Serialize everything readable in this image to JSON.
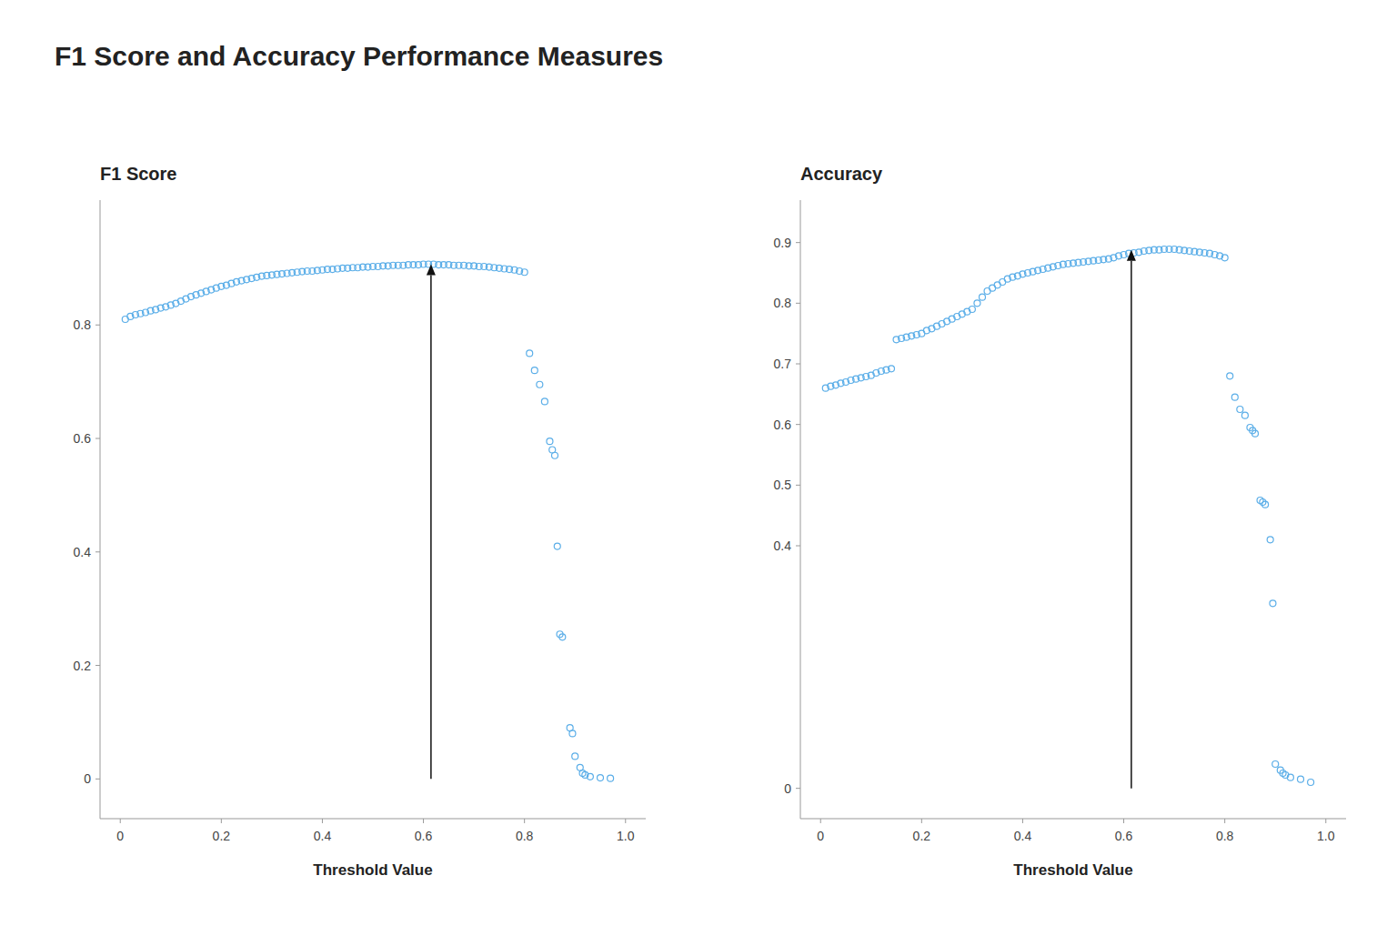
{
  "title": "F1 Score and Accuracy Performance Measures",
  "chart_data": [
    {
      "type": "scatter",
      "title": "F1 Score",
      "x_label": "Threshold Value",
      "color": "#5baee8",
      "marker": "circle",
      "grid": false,
      "xlim": [
        -0.04,
        1.04
      ],
      "xticks": [
        0,
        0.2,
        0.4,
        0.6,
        0.8,
        {
          "value": 1.0,
          "label": "1.0"
        }
      ],
      "ylim": [
        -0.07,
        1.02
      ],
      "yticks": [
        0,
        0.2,
        0.4,
        0.6,
        0.8
      ],
      "annotations": [
        {
          "type": "arrow",
          "x": 0.615,
          "y": 0.907,
          "y_from": 0.0
        }
      ],
      "x": [
        0.01,
        0.02,
        0.03,
        0.04,
        0.05,
        0.06,
        0.07,
        0.08,
        0.09,
        0.1,
        0.11,
        0.12,
        0.13,
        0.14,
        0.15,
        0.16,
        0.17,
        0.18,
        0.19,
        0.2,
        0.21,
        0.22,
        0.23,
        0.24,
        0.25,
        0.26,
        0.27,
        0.28,
        0.29,
        0.3,
        0.31,
        0.32,
        0.33,
        0.34,
        0.35,
        0.36,
        0.37,
        0.38,
        0.39,
        0.4,
        0.41,
        0.42,
        0.43,
        0.44,
        0.45,
        0.46,
        0.47,
        0.48,
        0.49,
        0.5,
        0.51,
        0.52,
        0.53,
        0.54,
        0.55,
        0.56,
        0.57,
        0.58,
        0.59,
        0.6,
        0.61,
        0.62,
        0.63,
        0.64,
        0.65,
        0.66,
        0.67,
        0.68,
        0.69,
        0.7,
        0.71,
        0.72,
        0.73,
        0.74,
        0.75,
        0.76,
        0.77,
        0.78,
        0.79,
        0.8,
        0.81,
        0.82,
        0.83,
        0.84,
        0.85,
        0.855,
        0.86,
        0.865,
        0.87,
        0.875,
        0.89,
        0.895,
        0.9,
        0.91,
        0.915,
        0.92,
        0.93,
        0.95,
        0.97
      ],
      "values": [
        0.81,
        0.815,
        0.818,
        0.82,
        0.822,
        0.825,
        0.827,
        0.83,
        0.832,
        0.835,
        0.838,
        0.842,
        0.846,
        0.85,
        0.853,
        0.856,
        0.859,
        0.862,
        0.865,
        0.868,
        0.87,
        0.873,
        0.876,
        0.878,
        0.88,
        0.882,
        0.884,
        0.886,
        0.887,
        0.888,
        0.889,
        0.89,
        0.891,
        0.892,
        0.893,
        0.894,
        0.895,
        0.895,
        0.896,
        0.897,
        0.898,
        0.898,
        0.899,
        0.9,
        0.9,
        0.901,
        0.901,
        0.902,
        0.902,
        0.903,
        0.903,
        0.904,
        0.904,
        0.905,
        0.905,
        0.905,
        0.906,
        0.906,
        0.906,
        0.907,
        0.907,
        0.907,
        0.906,
        0.906,
        0.906,
        0.905,
        0.905,
        0.905,
        0.904,
        0.904,
        0.903,
        0.903,
        0.902,
        0.901,
        0.9,
        0.899,
        0.898,
        0.897,
        0.895,
        0.893,
        0.75,
        0.72,
        0.695,
        0.665,
        0.595,
        0.58,
        0.57,
        0.41,
        0.255,
        0.25,
        0.09,
        0.08,
        0.04,
        0.02,
        0.01,
        0.007,
        0.004,
        0.002,
        0.001
      ]
    },
    {
      "type": "scatter",
      "title": "Accuracy",
      "x_label": "Threshold Value",
      "color": "#5baee8",
      "marker": "circle",
      "grid": false,
      "xlim": [
        -0.04,
        1.04
      ],
      "xticks": [
        0,
        0.2,
        0.4,
        0.6,
        0.8,
        {
          "value": 1.0,
          "label": "1.0"
        }
      ],
      "ylim": [
        -0.05,
        0.97
      ],
      "yticks": [
        0,
        0.4,
        0.5,
        0.6,
        0.7,
        0.8,
        0.9
      ],
      "annotations": [
        {
          "type": "arrow",
          "x": 0.615,
          "y": 0.888,
          "y_from": 0.0
        }
      ],
      "x": [
        0.01,
        0.02,
        0.03,
        0.04,
        0.05,
        0.06,
        0.07,
        0.08,
        0.09,
        0.1,
        0.11,
        0.12,
        0.13,
        0.14,
        0.15,
        0.16,
        0.17,
        0.18,
        0.19,
        0.2,
        0.21,
        0.22,
        0.23,
        0.24,
        0.25,
        0.26,
        0.27,
        0.28,
        0.29,
        0.3,
        0.31,
        0.32,
        0.33,
        0.34,
        0.35,
        0.36,
        0.37,
        0.38,
        0.39,
        0.4,
        0.41,
        0.42,
        0.43,
        0.44,
        0.45,
        0.46,
        0.47,
        0.48,
        0.49,
        0.5,
        0.51,
        0.52,
        0.53,
        0.54,
        0.55,
        0.56,
        0.57,
        0.58,
        0.59,
        0.6,
        0.61,
        0.62,
        0.63,
        0.64,
        0.65,
        0.66,
        0.67,
        0.68,
        0.69,
        0.7,
        0.71,
        0.72,
        0.73,
        0.74,
        0.75,
        0.76,
        0.77,
        0.78,
        0.79,
        0.8,
        0.81,
        0.82,
        0.83,
        0.84,
        0.85,
        0.855,
        0.86,
        0.87,
        0.875,
        0.88,
        0.89,
        0.895,
        0.9,
        0.91,
        0.915,
        0.92,
        0.93,
        0.95,
        0.97
      ],
      "values": [
        0.66,
        0.663,
        0.665,
        0.668,
        0.67,
        0.673,
        0.675,
        0.677,
        0.679,
        0.681,
        0.685,
        0.688,
        0.69,
        0.692,
        0.74,
        0.742,
        0.744,
        0.746,
        0.748,
        0.75,
        0.755,
        0.758,
        0.762,
        0.766,
        0.77,
        0.774,
        0.778,
        0.782,
        0.786,
        0.79,
        0.8,
        0.81,
        0.82,
        0.825,
        0.83,
        0.835,
        0.84,
        0.843,
        0.845,
        0.848,
        0.85,
        0.852,
        0.854,
        0.856,
        0.858,
        0.86,
        0.862,
        0.864,
        0.865,
        0.866,
        0.867,
        0.868,
        0.869,
        0.87,
        0.871,
        0.872,
        0.873,
        0.875,
        0.878,
        0.88,
        0.882,
        0.883,
        0.884,
        0.886,
        0.887,
        0.888,
        0.888,
        0.889,
        0.889,
        0.889,
        0.888,
        0.887,
        0.886,
        0.885,
        0.884,
        0.883,
        0.882,
        0.88,
        0.878,
        0.875,
        0.68,
        0.645,
        0.625,
        0.615,
        0.595,
        0.59,
        0.585,
        0.475,
        0.472,
        0.468,
        0.41,
        0.305,
        0.04,
        0.03,
        0.025,
        0.022,
        0.018,
        0.015,
        0.01
      ]
    }
  ]
}
